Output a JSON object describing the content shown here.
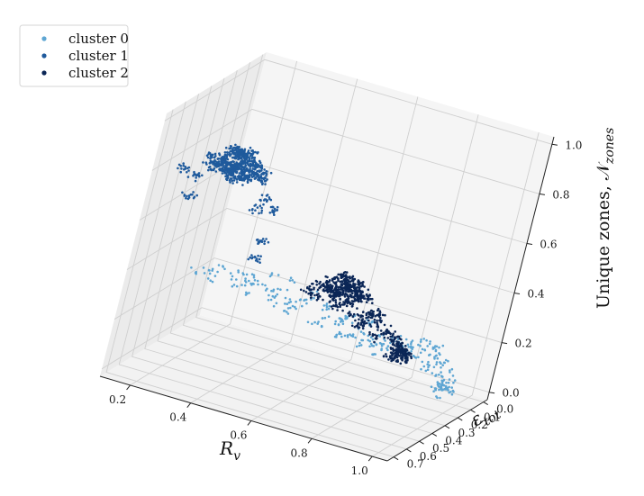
{
  "chart_data": {
    "type": "scatter",
    "projection": "3d",
    "grid": true,
    "legend_position": "top-left",
    "x": {
      "label_base": "R",
      "label_sub": "v",
      "ticks": [
        "0.2",
        "0.4",
        "0.6",
        "0.8",
        "1.0"
      ],
      "range": [
        0.1,
        1.05
      ]
    },
    "y": {
      "label_base": "ε",
      "label_sub": "tot",
      "ticks": [
        "0.0",
        "0.1",
        "0.2",
        "0.3",
        "0.4",
        "0.5",
        "0.6",
        "0.7"
      ],
      "range": [
        -0.03,
        0.75
      ]
    },
    "z": {
      "label_base": "Unique zones, 𝒩",
      "label_sub": "zones",
      "ticks": [
        "0.0",
        "0.2",
        "0.4",
        "0.6",
        "0.8",
        "1.0"
      ],
      "range": [
        -0.03,
        1.03
      ]
    },
    "series": [
      {
        "name": "cluster 0",
        "color": "#5ea6d3",
        "points": [
          [
            0.97,
            0.16,
            0.04
          ],
          [
            0.98,
            0.15,
            0.05
          ],
          [
            0.96,
            0.17,
            0.06
          ],
          [
            0.99,
            0.14,
            0.03
          ],
          [
            0.97,
            0.18,
            0.08
          ],
          [
            0.95,
            0.16,
            0.05
          ],
          [
            0.98,
            0.19,
            0.07
          ],
          [
            0.96,
            0.15,
            0.02
          ],
          [
            0.99,
            0.17,
            0.09
          ],
          [
            0.97,
            0.13,
            0.04
          ],
          [
            0.94,
            0.18,
            0.1
          ],
          [
            0.98,
            0.16,
            0.12
          ],
          [
            0.96,
            0.2,
            0.06
          ],
          [
            0.95,
            0.14,
            0.03
          ],
          [
            0.99,
            0.18,
            0.05
          ],
          [
            0.97,
            0.21,
            0.11
          ],
          [
            0.93,
            0.19,
            0.14
          ],
          [
            0.96,
            0.22,
            0.16
          ],
          [
            0.98,
            0.24,
            0.18
          ],
          [
            0.95,
            0.26,
            0.2
          ],
          [
            0.97,
            0.28,
            0.22
          ],
          [
            0.96,
            0.3,
            0.25
          ],
          [
            0.98,
            0.33,
            0.27
          ],
          [
            0.94,
            0.35,
            0.24
          ],
          [
            0.97,
            0.38,
            0.29
          ],
          [
            0.95,
            0.4,
            0.31
          ],
          [
            0.93,
            0.43,
            0.26
          ],
          [
            0.96,
            0.45,
            0.3
          ],
          [
            0.91,
            0.47,
            0.32
          ],
          [
            0.94,
            0.5,
            0.33
          ],
          [
            0.92,
            0.52,
            0.3
          ],
          [
            0.9,
            0.55,
            0.34
          ],
          [
            0.7,
            0.4,
            0.3
          ],
          [
            0.65,
            0.45,
            0.35
          ],
          [
            0.6,
            0.5,
            0.38
          ],
          [
            0.55,
            0.52,
            0.36
          ],
          [
            0.5,
            0.55,
            0.4
          ],
          [
            0.45,
            0.58,
            0.42
          ],
          [
            0.4,
            0.6,
            0.44
          ],
          [
            0.35,
            0.62,
            0.46
          ],
          [
            0.72,
            0.3,
            0.22
          ],
          [
            0.68,
            0.25,
            0.18
          ],
          [
            0.62,
            0.2,
            0.15
          ],
          [
            0.58,
            0.28,
            0.2
          ],
          [
            0.52,
            0.35,
            0.28
          ],
          [
            0.48,
            0.3,
            0.25
          ],
          [
            0.44,
            0.38,
            0.3
          ],
          [
            0.38,
            0.42,
            0.34
          ],
          [
            0.8,
            0.35,
            0.26
          ],
          [
            0.78,
            0.42,
            0.31
          ],
          [
            0.75,
            0.5,
            0.37
          ],
          [
            0.82,
            0.55,
            0.4
          ],
          [
            0.85,
            0.6,
            0.35
          ],
          [
            0.88,
            0.62,
            0.3
          ],
          [
            0.86,
            0.48,
            0.28
          ],
          [
            0.84,
            0.4,
            0.24
          ],
          [
            0.3,
            0.55,
            0.4
          ],
          [
            0.26,
            0.5,
            0.38
          ],
          [
            0.22,
            0.48,
            0.35
          ],
          [
            0.28,
            0.45,
            0.32
          ],
          [
            0.33,
            0.4,
            0.3
          ],
          [
            0.36,
            0.35,
            0.27
          ],
          [
            0.42,
            0.3,
            0.24
          ],
          [
            0.46,
            0.25,
            0.2
          ],
          [
            0.54,
            0.22,
            0.17
          ],
          [
            0.6,
            0.15,
            0.12
          ],
          [
            0.66,
            0.12,
            0.1
          ],
          [
            0.7,
            0.18,
            0.14
          ],
          [
            0.74,
            0.22,
            0.16
          ],
          [
            0.78,
            0.26,
            0.19
          ],
          [
            0.82,
            0.28,
            0.21
          ],
          [
            0.86,
            0.32,
            0.23
          ],
          [
            0.9,
            0.36,
            0.25
          ],
          [
            0.89,
            0.28,
            0.19
          ],
          [
            0.92,
            0.24,
            0.15
          ],
          [
            0.91,
            0.2,
            0.12
          ],
          [
            0.64,
            0.58,
            0.45
          ],
          [
            0.58,
            0.62,
            0.48
          ],
          [
            0.52,
            0.65,
            0.5
          ],
          [
            0.46,
            0.66,
            0.48
          ],
          [
            0.7,
            0.62,
            0.42
          ],
          [
            0.76,
            0.64,
            0.4
          ],
          [
            0.8,
            0.66,
            0.36
          ],
          [
            0.74,
            0.58,
            0.38
          ],
          [
            0.56,
            0.42,
            0.33
          ],
          [
            0.62,
            0.36,
            0.27
          ],
          [
            0.66,
            0.32,
            0.24
          ],
          [
            0.72,
            0.46,
            0.33
          ],
          [
            0.4,
            0.5,
            0.39
          ],
          [
            0.34,
            0.48,
            0.37
          ],
          [
            0.44,
            0.46,
            0.36
          ],
          [
            0.5,
            0.44,
            0.35
          ]
        ]
      },
      {
        "name": "cluster 1",
        "color": "#1f5a9c",
        "points": [
          [
            0.3,
            0.6,
            0.84
          ],
          [
            0.32,
            0.62,
            0.86
          ],
          [
            0.28,
            0.58,
            0.82
          ],
          [
            0.34,
            0.64,
            0.88
          ],
          [
            0.31,
            0.61,
            0.85
          ],
          [
            0.29,
            0.63,
            0.83
          ],
          [
            0.33,
            0.59,
            0.87
          ],
          [
            0.35,
            0.65,
            0.84
          ],
          [
            0.27,
            0.6,
            0.86
          ],
          [
            0.36,
            0.62,
            0.89
          ],
          [
            0.3,
            0.66,
            0.85
          ],
          [
            0.32,
            0.57,
            0.83
          ],
          [
            0.26,
            0.62,
            0.84
          ],
          [
            0.37,
            0.6,
            0.86
          ],
          [
            0.31,
            0.64,
            0.9
          ],
          [
            0.29,
            0.59,
            0.81
          ],
          [
            0.34,
            0.61,
            0.82
          ],
          [
            0.28,
            0.65,
            0.87
          ],
          [
            0.33,
            0.63,
            0.91
          ],
          [
            0.3,
            0.58,
            0.88
          ],
          [
            0.38,
            0.63,
            0.85
          ],
          [
            0.25,
            0.61,
            0.83
          ],
          [
            0.35,
            0.58,
            0.8
          ],
          [
            0.32,
            0.67,
            0.86
          ],
          [
            0.27,
            0.64,
            0.88
          ],
          [
            0.36,
            0.66,
            0.87
          ],
          [
            0.3,
            0.62,
            0.92
          ],
          [
            0.34,
            0.56,
            0.84
          ],
          [
            0.24,
            0.59,
            0.85
          ],
          [
            0.39,
            0.61,
            0.83
          ],
          [
            0.31,
            0.6,
            0.79
          ],
          [
            0.33,
            0.65,
            0.93
          ],
          [
            0.28,
            0.61,
            0.9
          ],
          [
            0.35,
            0.63,
            0.82
          ],
          [
            0.29,
            0.57,
            0.86
          ],
          [
            0.37,
            0.64,
            0.88
          ],
          [
            0.26,
            0.66,
            0.84
          ],
          [
            0.32,
            0.59,
            0.89
          ],
          [
            0.3,
            0.63,
            0.81
          ],
          [
            0.34,
            0.6,
            0.91
          ],
          [
            0.4,
            0.62,
            0.86
          ],
          [
            0.23,
            0.63,
            0.87
          ],
          [
            0.36,
            0.57,
            0.85
          ],
          [
            0.31,
            0.68,
            0.85
          ],
          [
            0.22,
            0.6,
            0.82
          ],
          [
            0.41,
            0.64,
            0.84
          ],
          [
            0.3,
            0.55,
            0.87
          ],
          [
            0.33,
            0.69,
            0.88
          ],
          [
            0.45,
            0.62,
            0.6
          ],
          [
            0.42,
            0.55,
            0.5
          ],
          [
            0.2,
            0.65,
            0.7
          ],
          [
            0.18,
            0.58,
            0.75
          ],
          [
            0.15,
            0.6,
            0.78
          ],
          [
            0.44,
            0.66,
            0.78
          ],
          [
            0.46,
            0.6,
            0.72
          ],
          [
            0.38,
            0.54,
            0.68
          ]
        ]
      },
      {
        "name": "cluster 2",
        "color": "#0b2656",
        "points": [
          [
            0.7,
            0.52,
            0.46
          ],
          [
            0.72,
            0.54,
            0.48
          ],
          [
            0.68,
            0.5,
            0.44
          ],
          [
            0.74,
            0.56,
            0.47
          ],
          [
            0.71,
            0.53,
            0.49
          ],
          [
            0.69,
            0.55,
            0.45
          ],
          [
            0.73,
            0.51,
            0.46
          ],
          [
            0.75,
            0.53,
            0.48
          ],
          [
            0.67,
            0.54,
            0.47
          ],
          [
            0.76,
            0.52,
            0.45
          ],
          [
            0.7,
            0.57,
            0.46
          ],
          [
            0.72,
            0.49,
            0.47
          ],
          [
            0.66,
            0.52,
            0.48
          ],
          [
            0.77,
            0.55,
            0.46
          ],
          [
            0.71,
            0.51,
            0.5
          ],
          [
            0.69,
            0.56,
            0.43
          ],
          [
            0.74,
            0.5,
            0.49
          ],
          [
            0.68,
            0.57,
            0.47
          ],
          [
            0.73,
            0.55,
            0.51
          ],
          [
            0.7,
            0.49,
            0.46
          ],
          [
            0.78,
            0.54,
            0.47
          ],
          [
            0.65,
            0.53,
            0.46
          ],
          [
            0.75,
            0.58,
            0.45
          ],
          [
            0.72,
            0.52,
            0.42
          ],
          [
            0.67,
            0.5,
            0.49
          ],
          [
            0.76,
            0.56,
            0.49
          ],
          [
            0.7,
            0.54,
            0.52
          ],
          [
            0.74,
            0.48,
            0.44
          ],
          [
            0.64,
            0.55,
            0.47
          ],
          [
            0.79,
            0.52,
            0.46
          ],
          [
            0.71,
            0.55,
            0.41
          ],
          [
            0.73,
            0.57,
            0.53
          ],
          [
            0.8,
            0.48,
            0.38
          ],
          [
            0.82,
            0.46,
            0.35
          ],
          [
            0.84,
            0.44,
            0.32
          ],
          [
            0.85,
            0.42,
            0.3
          ],
          [
            0.86,
            0.4,
            0.28
          ],
          [
            0.87,
            0.38,
            0.26
          ],
          [
            0.88,
            0.37,
            0.24
          ],
          [
            0.89,
            0.36,
            0.22
          ],
          [
            0.9,
            0.45,
            0.25
          ],
          [
            0.91,
            0.44,
            0.27
          ],
          [
            0.89,
            0.46,
            0.26
          ],
          [
            0.92,
            0.43,
            0.24
          ],
          [
            0.9,
            0.47,
            0.28
          ],
          [
            0.88,
            0.45,
            0.23
          ],
          [
            0.91,
            0.48,
            0.25
          ],
          [
            0.93,
            0.46,
            0.26
          ],
          [
            0.78,
            0.46,
            0.33
          ],
          [
            0.76,
            0.44,
            0.31
          ],
          [
            0.8,
            0.42,
            0.28
          ],
          [
            0.74,
            0.47,
            0.36
          ],
          [
            0.62,
            0.5,
            0.4
          ],
          [
            0.6,
            0.52,
            0.43
          ],
          [
            0.83,
            0.5,
            0.4
          ],
          [
            0.81,
            0.56,
            0.42
          ]
        ]
      }
    ]
  },
  "legend": {
    "items": [
      {
        "label": "cluster 0",
        "color": "#5ea6d3"
      },
      {
        "label": "cluster 1",
        "color": "#1f5a9c"
      },
      {
        "label": "cluster 2",
        "color": "#0b2656"
      }
    ]
  }
}
